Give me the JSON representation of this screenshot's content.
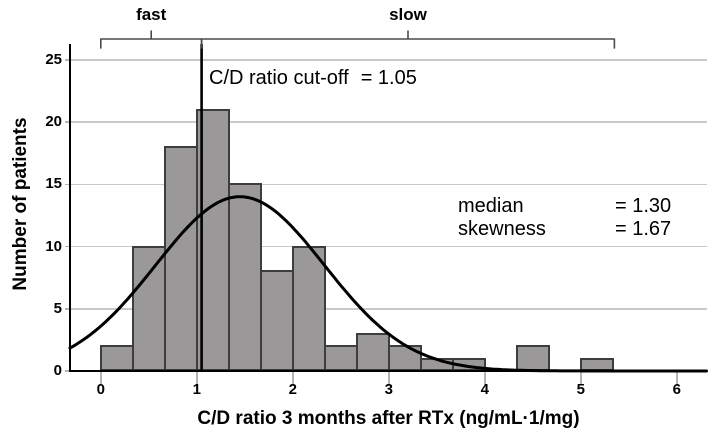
{
  "chart_data": {
    "type": "bar",
    "subtype": "histogram-with-normal-curve",
    "title": "",
    "xlabel": "C/D ratio 3 months after RTx (ng/mL·1/mg)",
    "ylabel": "Number of patients",
    "x_ticks": [
      0,
      1,
      2,
      3,
      4,
      5,
      6
    ],
    "y_ticks": [
      0,
      5,
      10,
      15,
      20,
      25
    ],
    "xlim": [
      -0.32,
      6.32
    ],
    "ylim": [
      0,
      26.3
    ],
    "grid": "horizontal",
    "bin_width": 0.3333,
    "bins": [
      {
        "start": 0.0,
        "count": 2
      },
      {
        "start": 0.3333,
        "count": 10
      },
      {
        "start": 0.6667,
        "count": 18
      },
      {
        "start": 1.0,
        "count": 21
      },
      {
        "start": 1.3333,
        "count": 15
      },
      {
        "start": 1.6667,
        "count": 8
      },
      {
        "start": 2.0,
        "count": 10
      },
      {
        "start": 2.3333,
        "count": 2
      },
      {
        "start": 2.6667,
        "count": 3
      },
      {
        "start": 3.0,
        "count": 2
      },
      {
        "start": 3.3333,
        "count": 1
      },
      {
        "start": 3.6667,
        "count": 1
      },
      {
        "start": 4.0,
        "count": 0
      },
      {
        "start": 4.3333,
        "count": 2
      },
      {
        "start": 4.6667,
        "count": 0
      },
      {
        "start": 5.0,
        "count": 1
      }
    ],
    "normal_curve": {
      "peak": 14,
      "mean": 1.45,
      "sd": 0.88
    },
    "cutoff_x": 1.05,
    "brackets": [
      {
        "label": "fast",
        "from": 0.0,
        "to": 1.05
      },
      {
        "label": "slow",
        "from": 1.05,
        "to": 5.35
      }
    ],
    "annotations": {
      "cutoff_label": "C/D ratio cut-off",
      "cutoff_value": "= 1.05",
      "stats": [
        {
          "label": "median",
          "value": "= 1.30"
        },
        {
          "label": "skewness",
          "value": "= 1.67"
        }
      ]
    },
    "colors": {
      "bar_fill": "#9a9898",
      "bar_border": "#3d3d3d",
      "gridline": "#c9c9c9",
      "tick": "#b5b5b5",
      "curve": "#000000",
      "axis": "#000000",
      "cutoff_line": "#000000",
      "bracket": "#4a4a4a",
      "text": "#000000"
    }
  }
}
